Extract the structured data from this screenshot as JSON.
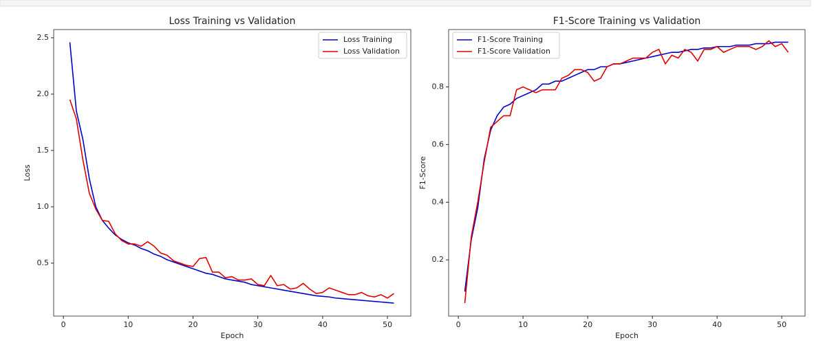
{
  "chart_data": [
    {
      "type": "line",
      "title": "Loss Training vs Validation",
      "x_label": "Epoch",
      "y_label": "Loss",
      "x": [
        1,
        2,
        3,
        4,
        5,
        6,
        7,
        8,
        9,
        10,
        11,
        12,
        13,
        14,
        15,
        16,
        17,
        18,
        19,
        20,
        21,
        22,
        23,
        24,
        25,
        26,
        27,
        28,
        29,
        30,
        31,
        32,
        33,
        34,
        35,
        36,
        37,
        38,
        39,
        40,
        41,
        42,
        43,
        44,
        45,
        46,
        47,
        48,
        49,
        50,
        51
      ],
      "series": [
        {
          "name": "Loss Training",
          "color": "#0000cd",
          "values": [
            2.46,
            1.85,
            1.6,
            1.25,
            1.0,
            0.88,
            0.81,
            0.75,
            0.71,
            0.68,
            0.66,
            0.63,
            0.61,
            0.58,
            0.56,
            0.53,
            0.51,
            0.49,
            0.47,
            0.45,
            0.43,
            0.41,
            0.4,
            0.38,
            0.36,
            0.35,
            0.34,
            0.33,
            0.31,
            0.3,
            0.29,
            0.28,
            0.27,
            0.26,
            0.25,
            0.24,
            0.23,
            0.22,
            0.21,
            0.205,
            0.2,
            0.19,
            0.185,
            0.18,
            0.175,
            0.17,
            0.165,
            0.16,
            0.155,
            0.15,
            0.145
          ]
        },
        {
          "name": "Loss Validation",
          "color": "#e00000",
          "values": [
            1.95,
            1.78,
            1.42,
            1.12,
            0.98,
            0.88,
            0.87,
            0.76,
            0.7,
            0.67,
            0.67,
            0.65,
            0.69,
            0.65,
            0.59,
            0.57,
            0.52,
            0.5,
            0.48,
            0.47,
            0.54,
            0.55,
            0.42,
            0.42,
            0.37,
            0.38,
            0.35,
            0.35,
            0.36,
            0.31,
            0.3,
            0.39,
            0.3,
            0.31,
            0.27,
            0.28,
            0.32,
            0.27,
            0.23,
            0.24,
            0.28,
            0.26,
            0.24,
            0.22,
            0.22,
            0.24,
            0.21,
            0.2,
            0.22,
            0.19,
            0.23
          ]
        }
      ],
      "xlim": [
        -1.5,
        53.6
      ],
      "ylim": [
        0.03,
        2.573
      ],
      "xticks": [
        0,
        10,
        20,
        30,
        40,
        50
      ],
      "yticks": [
        0.5,
        {
          "value": 1,
          "label": "1.0"
        },
        1.5,
        {
          "value": 2,
          "label": "2.0"
        },
        2.5
      ],
      "legend": "upper right"
    },
    {
      "type": "line",
      "title": "F1-Score Training vs Validation",
      "x_label": "Epoch",
      "y_label": "F1-Score",
      "x": [
        1,
        2,
        3,
        4,
        5,
        6,
        7,
        8,
        9,
        10,
        11,
        12,
        13,
        14,
        15,
        16,
        17,
        18,
        19,
        20,
        21,
        22,
        23,
        24,
        25,
        26,
        27,
        28,
        29,
        30,
        31,
        32,
        33,
        34,
        35,
        36,
        37,
        38,
        39,
        40,
        41,
        42,
        43,
        44,
        45,
        46,
        47,
        48,
        49,
        50,
        51
      ],
      "series": [
        {
          "name": "F1-Score Training",
          "color": "#0000cd",
          "values": [
            0.09,
            0.27,
            0.38,
            0.55,
            0.65,
            0.7,
            0.73,
            0.74,
            0.76,
            0.77,
            0.78,
            0.79,
            0.81,
            0.81,
            0.82,
            0.82,
            0.83,
            0.84,
            0.85,
            0.86,
            0.86,
            0.87,
            0.87,
            0.88,
            0.88,
            0.885,
            0.89,
            0.895,
            0.9,
            0.905,
            0.91,
            0.915,
            0.92,
            0.92,
            0.925,
            0.93,
            0.93,
            0.935,
            0.935,
            0.94,
            0.94,
            0.94,
            0.945,
            0.945,
            0.945,
            0.95,
            0.95,
            0.95,
            0.955,
            0.955,
            0.955
          ]
        },
        {
          "name": "F1-Score Validation",
          "color": "#e00000",
          "values": [
            0.05,
            0.28,
            0.4,
            0.54,
            0.66,
            0.68,
            0.7,
            0.7,
            0.79,
            0.8,
            0.79,
            0.78,
            0.79,
            0.79,
            0.79,
            0.83,
            0.84,
            0.86,
            0.86,
            0.85,
            0.82,
            0.83,
            0.87,
            0.88,
            0.88,
            0.89,
            0.9,
            0.9,
            0.9,
            0.92,
            0.93,
            0.88,
            0.91,
            0.9,
            0.93,
            0.92,
            0.89,
            0.93,
            0.93,
            0.94,
            0.92,
            0.93,
            0.94,
            0.94,
            0.94,
            0.93,
            0.94,
            0.96,
            0.94,
            0.95,
            0.92
          ]
        }
      ],
      "xlim": [
        -1.5,
        53.6
      ],
      "ylim": [
        0.005,
        0.999
      ],
      "xticks": [
        0,
        10,
        20,
        30,
        40,
        50
      ],
      "yticks": [
        0.2,
        0.4,
        0.6,
        0.8
      ],
      "legend": "upper left"
    }
  ]
}
